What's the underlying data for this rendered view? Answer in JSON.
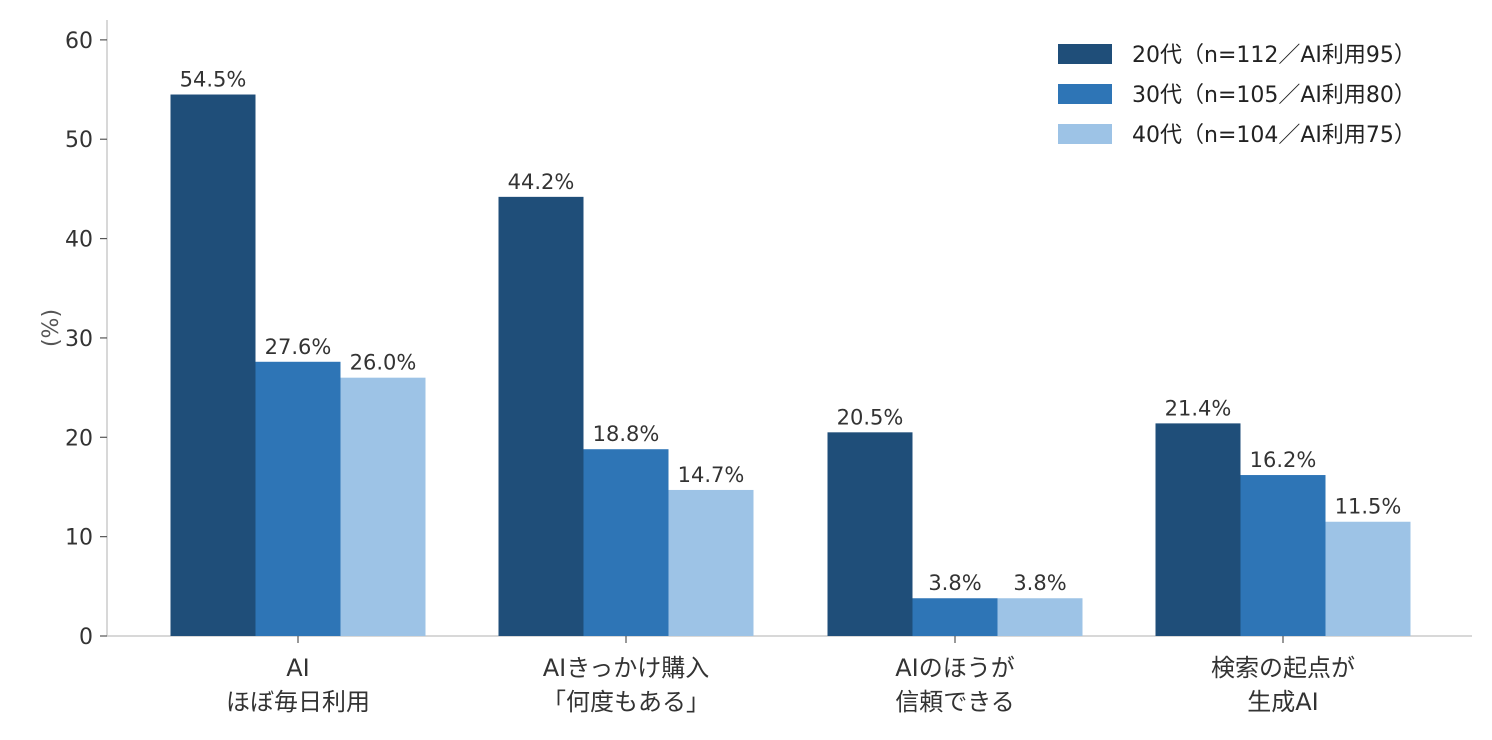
{
  "chart_data": {
    "type": "bar",
    "title": "",
    "xlabel": "",
    "ylabel": "(%)",
    "ylim": [
      0,
      62
    ],
    "yticks": [
      0,
      10,
      20,
      30,
      40,
      50,
      60
    ],
    "grid": false,
    "legend_position": "top-right",
    "categories": [
      [
        "AI",
        "ほぼ毎日利用"
      ],
      [
        "AIきっかけ購入",
        "「何度もある」"
      ],
      [
        "AIのほうが",
        "信頼できる"
      ],
      [
        "検索の起点が",
        "生成AI"
      ]
    ],
    "series": [
      {
        "name": "20代（n=112／AI利用95）",
        "color": "#1f4e79",
        "values": [
          54.5,
          44.2,
          20.5,
          21.4
        ],
        "labels": [
          "54.5%",
          "44.2%",
          "20.5%",
          "21.4%"
        ]
      },
      {
        "name": "30代（n=105／AI利用80）",
        "color": "#2e75b6",
        "values": [
          27.6,
          18.8,
          3.8,
          16.2
        ],
        "labels": [
          "27.6%",
          "18.8%",
          "3.8%",
          "16.2%"
        ]
      },
      {
        "name": "40代（n=104／AI利用75）",
        "color": "#9dc3e6",
        "values": [
          26.0,
          14.7,
          3.8,
          11.5
        ],
        "labels": [
          "26.0%",
          "14.7%",
          "3.8%",
          "11.5%"
        ]
      }
    ]
  }
}
